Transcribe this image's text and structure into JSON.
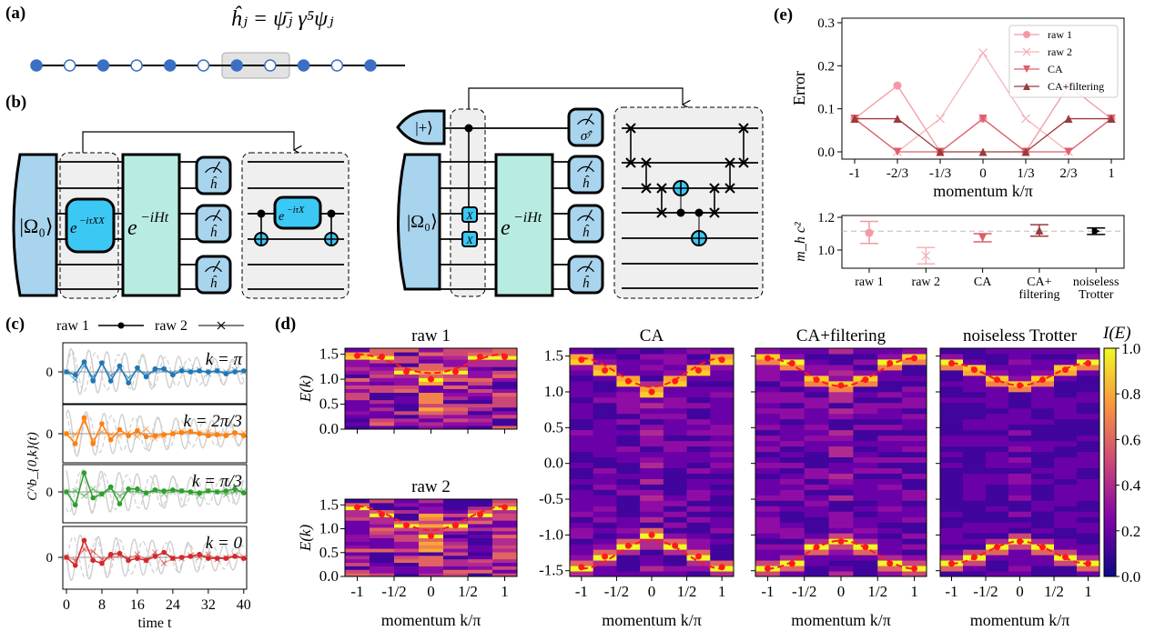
{
  "panel_labels": {
    "a": "(a)",
    "b": "(b)",
    "c": "(c)",
    "d": "(d)",
    "e": "(e)"
  },
  "panel_a": {
    "formula": "ĥⱼ = ψ̄ⱼ γ⁵ψⱼ",
    "sites": [
      "filled",
      "hollow",
      "filled",
      "hollow",
      "filled",
      "hollow",
      "filled",
      "hollow",
      "filled",
      "hollow",
      "filled"
    ],
    "site_color": "#3a6fc4"
  },
  "panel_b": {
    "ground_state": "|Ω₀⟩",
    "plus_state": "|+⟩",
    "exp_base": "e",
    "xx_exp": "−iτXX",
    "evo_exp": "−iHt",
    "x_exp": "−iτX",
    "x_gate": "X",
    "meas_h": "ĥ",
    "meas_sy": "σ̂ʸ",
    "colors": {
      "state": "#a8d4ee",
      "gate": "#3cc8f4",
      "evolution": "#b8ece2",
      "box": "#efefef"
    }
  },
  "chart_data": [
    {
      "id": "c",
      "type": "line",
      "legend": [
        "raw 1",
        "raw 2"
      ],
      "xlabel": "time t",
      "ylabel": "C^b_{0,k}(t)",
      "xticks": [
        "0",
        "8",
        "16",
        "24",
        "32",
        "40"
      ],
      "xlim": [
        0,
        40
      ],
      "ytick": "0",
      "t": [
        0,
        2,
        4,
        6,
        8,
        10,
        12,
        14,
        16,
        18,
        20,
        22,
        24,
        26,
        28,
        30,
        32,
        34,
        36,
        38,
        40
      ],
      "panels": [
        {
          "k": "k = π",
          "color": "#1f77b4",
          "raw1": [
            0,
            -0.3,
            1.0,
            -0.9,
            0.9,
            -0.9,
            0.6,
            -1.1,
            0.4,
            -0.5,
            0.3,
            0.3,
            -0.3,
            0.1,
            0,
            0.1,
            0,
            0.1,
            -0.2,
            0,
            0.1
          ],
          "raw2": [
            0,
            -0.8,
            0.6,
            -0.5,
            0.8,
            -0.4,
            0.3,
            -0.6,
            0.2,
            -0.2,
            0.1,
            0.2,
            -0.1,
            0.3,
            0.1,
            0.2,
            -0.2,
            0.1,
            0,
            0.2,
            0
          ]
        },
        {
          "k": "k = 2π/3",
          "color": "#ff7f0e",
          "raw1": [
            0,
            -1.0,
            1.6,
            -1.0,
            1.0,
            -0.6,
            0.4,
            -0.2,
            0.3,
            -0.3,
            -0.2,
            -0.1,
            0,
            0.1,
            0.2,
            0,
            -0.2,
            -0.1,
            -0.2,
            0.1,
            -0.2
          ],
          "raw2": [
            0,
            -0.1,
            1.2,
            -0.6,
            0.2,
            -0.1,
            -0.2,
            0.1,
            -0.3,
            0.5,
            -0.5,
            -0.2,
            0.1,
            0.3,
            0.2,
            0.1,
            0.2,
            0,
            0,
            -0.1,
            0.1
          ]
        },
        {
          "k": "k = π/3",
          "color": "#2ca02c",
          "raw1": [
            0,
            -1.3,
            1.9,
            -0.6,
            -0.2,
            0.5,
            -1.2,
            0.3,
            0.3,
            -0.1,
            0.2,
            0.1,
            0.2,
            0.1,
            0,
            -0.1,
            0.1,
            0,
            0.1,
            0.3,
            -0.1
          ],
          "raw2": [
            0,
            0.1,
            -0.4,
            0.3,
            -0.3,
            0.3,
            -0.4,
            0.1,
            0,
            -0.2,
            0.1,
            -0.2,
            0,
            0.1,
            -0.1,
            -0.4,
            0.1,
            0,
            -0.3,
            0,
            0.1
          ]
        },
        {
          "k": "k = 0",
          "color": "#d62728",
          "raw1": [
            0,
            -0.8,
            1.7,
            -0.3,
            -0.6,
            0.3,
            0.4,
            -0.3,
            -0.1,
            -0.3,
            0.1,
            0.5,
            -0.1,
            0,
            0.1,
            0.3,
            -0.1,
            -0.1,
            -0.1,
            0.1,
            -0.1
          ],
          "raw2": [
            0,
            -0.3,
            0.8,
            0.6,
            -0.2,
            0,
            0.2,
            -0.1,
            0.3,
            -0.3,
            0.5,
            -0.6,
            -0.1,
            -0.1,
            0.2,
            0,
            0.3,
            -0.2,
            0,
            0.2,
            0
          ]
        }
      ]
    },
    {
      "id": "d",
      "type": "heatmap",
      "k": [
        -1,
        -0.6667,
        -0.3333,
        0,
        0.3333,
        0.6667,
        1
      ],
      "xticks": [
        "-1",
        "-1/2",
        "0",
        "1/2",
        "1"
      ],
      "xlabel": "momentum k/π",
      "ylabel": "E(k)",
      "colorbar": {
        "label": "I(E)",
        "ticks": [
          "0.0",
          "0.2",
          "0.4",
          "0.6",
          "0.8",
          "1.0"
        ],
        "colormap": "plasma"
      },
      "panels": [
        {
          "title": "raw 1",
          "ylim": [
            0,
            1.62
          ],
          "yticks": [
            "0.0",
            "0.5",
            "1.0",
            "1.5"
          ],
          "yticks_v": [
            0,
            0.5,
            1,
            1.5
          ],
          "symmetric": false,
          "points": [
            1.47,
            1.45,
            1.15,
            1.0,
            1.15,
            1.45,
            1.45
          ],
          "fit": {
            "E_at_0": 1.12,
            "E_at_1": 1.5
          }
        },
        {
          "title": "raw 2",
          "ylim": [
            0,
            1.62
          ],
          "yticks": [
            "0.0",
            "0.5",
            "1.0",
            "1.5"
          ],
          "yticks_v": [
            0,
            0.5,
            1,
            1.5
          ],
          "symmetric": false,
          "points": [
            1.45,
            1.3,
            1.07,
            0.85,
            1.07,
            1.3,
            1.45
          ],
          "fit": {
            "E_at_0": 0.97,
            "E_at_1": 1.47
          }
        },
        {
          "title": "CA",
          "ylim": [
            -1.58,
            1.61
          ],
          "yticks": [
            "-1.5",
            "-1.0",
            "-0.5",
            "0.0",
            "0.5",
            "1.0",
            "1.5"
          ],
          "yticks_v": [
            -1.5,
            -1,
            -0.5,
            0,
            0.5,
            1,
            1.5
          ],
          "symmetric": true,
          "points": [
            1.45,
            1.3,
            1.15,
            1.0,
            1.15,
            1.3,
            1.45
          ],
          "fit": {
            "E_at_0": 1.07,
            "E_at_1": 1.47
          }
        },
        {
          "title": "CA+filtering",
          "ylim": [
            -1.58,
            1.61
          ],
          "yticks": [],
          "yticks_v": [
            -1.5,
            -1,
            -0.5,
            0,
            0.5,
            1,
            1.5
          ],
          "symmetric": true,
          "points": [
            1.47,
            1.4,
            1.17,
            1.09,
            1.17,
            1.4,
            1.47
          ],
          "fit": {
            "E_at_0": 1.08,
            "E_at_1": 1.47
          }
        },
        {
          "title": "noiseless Trotter",
          "ylim": [
            -1.58,
            1.61
          ],
          "yticks": [],
          "yticks_v": [
            -1.5,
            -1,
            -0.5,
            0,
            0.5,
            1,
            1.5
          ],
          "symmetric": true,
          "points": [
            1.4,
            1.31,
            1.17,
            1.09,
            1.17,
            1.31,
            1.4
          ],
          "fit": {
            "E_at_0": 1.09,
            "E_at_1": 1.4
          }
        }
      ]
    },
    {
      "id": "e-top",
      "type": "line",
      "xlabel": "momentum k/π",
      "ylabel": "Error",
      "ylim": [
        0,
        0.3
      ],
      "yticks": [
        "0.0",
        "0.1",
        "0.2",
        "0.3"
      ],
      "xticks": [
        "-1",
        "-2/3",
        "-1/3",
        "0",
        "1/3",
        "2/3",
        "1"
      ],
      "legend_position": "top-right",
      "series": [
        {
          "name": "raw 1",
          "marker": "circle",
          "color": "#f29aa3",
          "values": [
            0.077,
            0.154,
            0,
            0.077,
            0,
            0.154,
            0.077
          ]
        },
        {
          "name": "raw 2",
          "marker": "x",
          "color": "#f5b3b9",
          "values": [
            0.077,
            0,
            0.077,
            0.23,
            0.077,
            0,
            0.077
          ]
        },
        {
          "name": "CA",
          "marker": "triangle-down",
          "color": "#de5f6b",
          "values": [
            0.077,
            0,
            0,
            0.077,
            0,
            0,
            0.077
          ]
        },
        {
          "name": "CA+filtering",
          "marker": "triangle-up",
          "color": "#9b3a3c",
          "values": [
            0.077,
            0.077,
            0,
            0,
            0,
            0.077,
            0.077
          ]
        }
      ]
    },
    {
      "id": "e-bottom",
      "type": "scatter",
      "ylabel": "m_h c²",
      "ylim": [
        0.9,
        1.21
      ],
      "yticks": [
        "1.0",
        "1.2"
      ],
      "reference": 1.115,
      "categories": [
        "raw 1",
        "raw 2",
        "CA",
        "CA+ filtering",
        "noiseless Trotter"
      ],
      "category_lines": [
        [
          "raw 1"
        ],
        [
          "raw 2"
        ],
        [
          "CA"
        ],
        [
          "CA+",
          "filtering"
        ],
        [
          "noiseless",
          "Trotter"
        ]
      ],
      "points": [
        {
          "value": 1.105,
          "low": 1.04,
          "high": 1.175,
          "marker": "circle",
          "color": "#f29aa3"
        },
        {
          "value": 0.965,
          "low": 0.915,
          "high": 1.015,
          "marker": "x",
          "color": "#f5b3b9"
        },
        {
          "value": 1.075,
          "low": 1.05,
          "high": 1.1,
          "marker": "triangle-down",
          "color": "#de5f6b"
        },
        {
          "value": 1.12,
          "low": 1.085,
          "high": 1.155,
          "marker": "triangle-up",
          "color": "#9b3a3c"
        },
        {
          "value": 1.115,
          "low": 1.095,
          "high": 1.135,
          "marker": "triangle-right",
          "color": "#000000"
        }
      ]
    }
  ]
}
